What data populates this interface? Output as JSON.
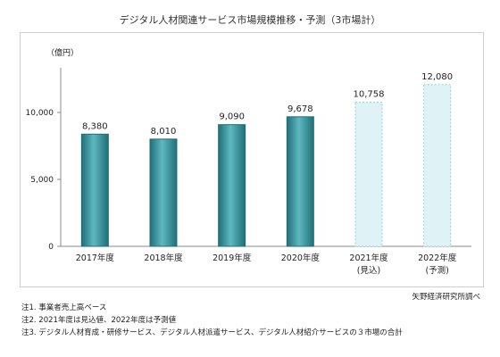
{
  "chart_data": {
    "type": "bar",
    "title": "デジタル人材関連サービス市場規模推移・予測（3市場計）",
    "unit_label": "（億円）",
    "categories": [
      [
        "2017年度"
      ],
      [
        "2018年度"
      ],
      [
        "2019年度"
      ],
      [
        "2020年度"
      ],
      [
        "2021年度",
        "(見込)"
      ],
      [
        "2022年度",
        "(予測)"
      ]
    ],
    "values": [
      8380,
      8010,
      9090,
      9678,
      10758,
      12080
    ],
    "value_labels": [
      "8,380",
      "8,010",
      "9,090",
      "9,678",
      "10,758",
      "12,080"
    ],
    "bar_styles": [
      "actual",
      "actual",
      "actual",
      "actual",
      "forecast",
      "forecast"
    ],
    "ylim": [
      0,
      13333
    ],
    "yticks": [
      0,
      5000,
      10000
    ],
    "ytick_labels": [
      "0",
      "5,000",
      "10,000"
    ],
    "grid": false,
    "legend": "none",
    "colors": {
      "actual_fill_light": "#5fb8c0",
      "actual_fill_dark": "#1f6f78",
      "forecast_fill": "#dff3f6",
      "forecast_border": "#8fcfd7",
      "axis": "#888888"
    }
  },
  "source": "矢野経済研究所調べ",
  "notes": [
    "注1. 事業者売上高ベース",
    "注2. 2021年度は見込値、2022年度は予測値",
    "注3. デジタル人材育成・研修サービス、デジタル人材派遣サービス、デジタル人材紹介サービスの３市場の合計"
  ]
}
